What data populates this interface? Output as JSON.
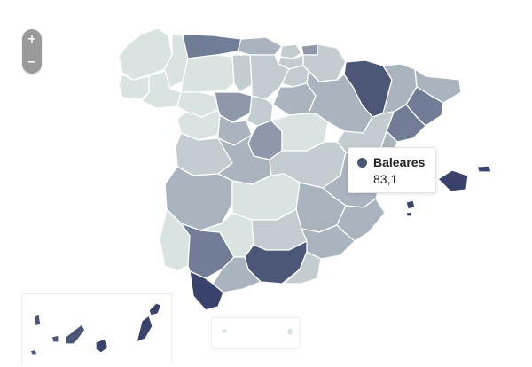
{
  "zoom": {
    "in_label": "+",
    "out_label": "−"
  },
  "tooltip": {
    "name": "Baleares",
    "value": "83,1"
  },
  "colors": {
    "c1": "#d9e3e2",
    "c2": "#c3cdd1",
    "c3": "#aab4bf",
    "c4": "#8f98ab",
    "c5": "#717c96",
    "c6": "#4c5778",
    "c7": "#38426a",
    "tooltip_dot": "#4a5575"
  }
}
